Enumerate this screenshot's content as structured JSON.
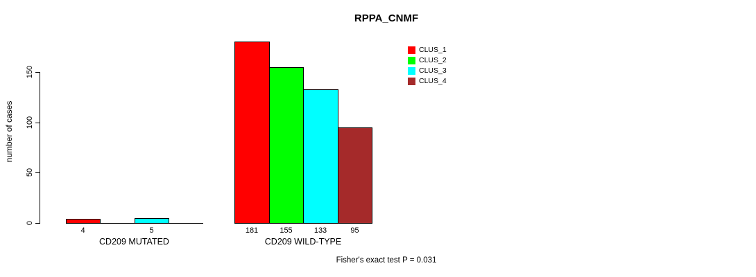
{
  "chart_data": {
    "type": "bar",
    "title": "RPPA_CNMF",
    "ylabel": "number of cases",
    "xlabel": "",
    "annotation": "Fisher's exact test P = 0.031",
    "categories": [
      "CD209 MUTATED",
      "CD209 WILD-TYPE"
    ],
    "series": [
      {
        "name": "CLUS_1",
        "color": "#ff0000",
        "values": [
          4,
          181
        ]
      },
      {
        "name": "CLUS_2",
        "color": "#00ff00",
        "values": [
          0,
          155
        ]
      },
      {
        "name": "CLUS_3",
        "color": "#00ffff",
        "values": [
          5,
          133
        ]
      },
      {
        "name": "CLUS_4",
        "color": "#a52a2a",
        "values": [
          0,
          95
        ]
      }
    ],
    "yticks": [
      0,
      50,
      100,
      150
    ],
    "ylim": [
      0,
      187
    ],
    "grid": false,
    "legend_position": "top-right",
    "bar_value_labels": true,
    "zero_value_bars_hidden": true,
    "text_color": "#000000",
    "background_color": "#ffffff"
  }
}
